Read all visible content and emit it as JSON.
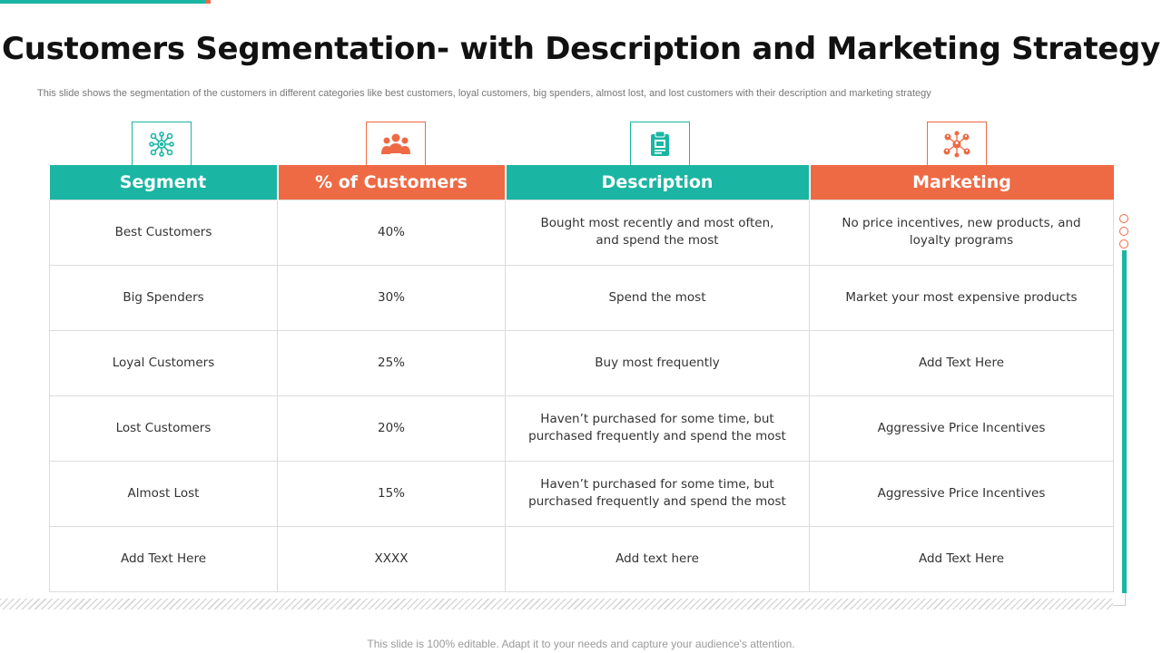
{
  "slide": {
    "title": "Customers Segmentation- with Description and Marketing Strategy",
    "subtitle": "This slide shows the segmentation of the customers in different categories like best customers, loyal customers, big spenders, almost lost, and lost customers with their description and marketing strategy",
    "footer": "This slide is 100% editable. Adapt it to your needs and capture your audience's attention."
  },
  "icons": [
    "network-icon",
    "people-group-icon",
    "clipboard-icon",
    "people-network-icon"
  ],
  "colors": {
    "teal": "#1bb5a3",
    "orange": "#ee6a45"
  },
  "table": {
    "headers": [
      "Segment",
      "% of Customers",
      "Description",
      "Marketing"
    ],
    "rows": [
      [
        "Best Customers",
        "40%",
        "Bought most recently and most often, and spend the most",
        "No price incentives, new products, and loyalty programs"
      ],
      [
        "Big Spenders",
        "30%",
        "Spend the most",
        "Market  your most expensive products"
      ],
      [
        "Loyal Customers",
        "25%",
        "Buy most frequently",
        "Add Text Here"
      ],
      [
        "Lost Customers",
        "20%",
        "Haven’t purchased for some time, but purchased frequently and spend the most",
        "Aggressive Price Incentives"
      ],
      [
        "Almost Lost",
        "15%",
        "Haven’t purchased for some time, but purchased frequently and spend the most",
        "Aggressive Price Incentives"
      ],
      [
        "Add Text Here",
        "XXXX",
        "Add text here",
        "Add Text Here"
      ]
    ]
  }
}
